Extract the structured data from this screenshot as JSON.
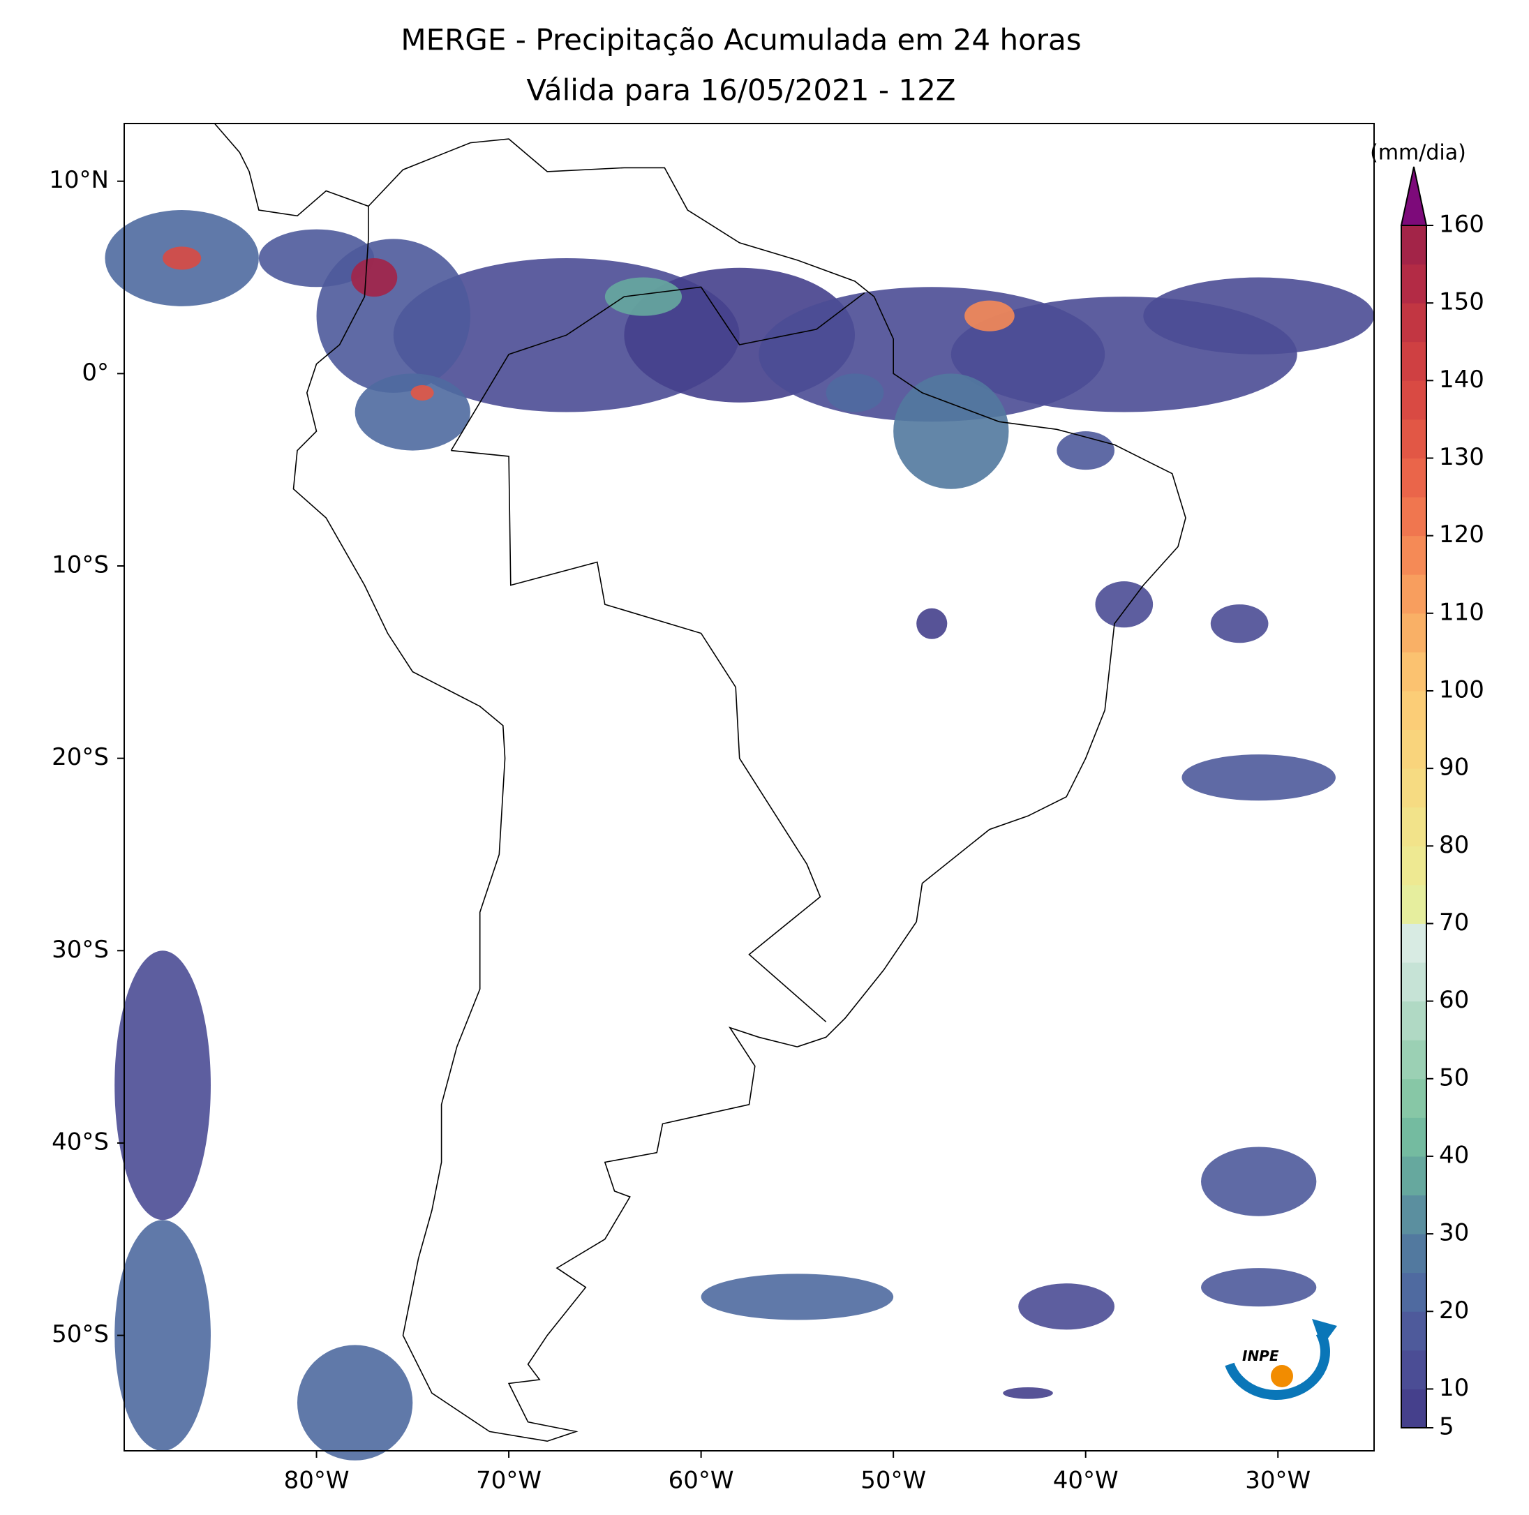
{
  "title": "MERGE - Precipitação Acumulada em 24 horas",
  "subtitle": "Válida para 16/05/2021 - 12Z",
  "map": {
    "xlim": [
      -90,
      -25
    ],
    "ylim": [
      -56,
      13
    ],
    "xticks": [
      {
        "value": -80,
        "label": "80°W"
      },
      {
        "value": -70,
        "label": "70°W"
      },
      {
        "value": -60,
        "label": "60°W"
      },
      {
        "value": -50,
        "label": "50°W"
      },
      {
        "value": -40,
        "label": "40°W"
      },
      {
        "value": -30,
        "label": "30°W"
      }
    ],
    "yticks": [
      {
        "value": 10,
        "label": "10°N"
      },
      {
        "value": 0,
        "label": "0°"
      },
      {
        "value": -10,
        "label": "10°S"
      },
      {
        "value": -20,
        "label": "20°S"
      },
      {
        "value": -30,
        "label": "30°S"
      },
      {
        "value": -40,
        "label": "40°S"
      },
      {
        "value": -50,
        "label": "50°S"
      }
    ]
  },
  "colorbar": {
    "label": "(mm/dia)",
    "levels": [
      5,
      10,
      15,
      20,
      25,
      30,
      35,
      40,
      45,
      50,
      55,
      60,
      65,
      70,
      75,
      80,
      85,
      90,
      95,
      100,
      105,
      110,
      115,
      120,
      125,
      130,
      135,
      140,
      145,
      150,
      155,
      160
    ],
    "colors": [
      "#45408c",
      "#4b4d95",
      "#4e5a9b",
      "#4f6aa0",
      "#52799f",
      "#5b8f9f",
      "#66a89e",
      "#74bba0",
      "#87c7a6",
      "#9bd0b4",
      "#b0d9c4",
      "#c6e3d6",
      "#d8ebe3",
      "#e6ee9e",
      "#eee992",
      "#f2e38a",
      "#f6db82",
      "#f9d47c",
      "#fbcd77",
      "#fbc270",
      "#f9b066",
      "#f89e5e",
      "#f58a56",
      "#f0764f",
      "#ea654a",
      "#e25745",
      "#d94a43",
      "#cf4042",
      "#c23642",
      "#b32b45",
      "#a32448"
    ],
    "extend_color": "#7d0a7a",
    "ticks": [
      5,
      10,
      20,
      30,
      40,
      50,
      60,
      70,
      80,
      90,
      100,
      110,
      120,
      130,
      140,
      150,
      160
    ]
  },
  "logo": "INPE"
}
